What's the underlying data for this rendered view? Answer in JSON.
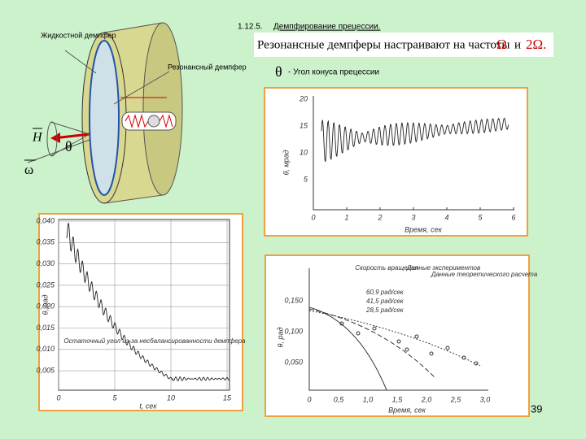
{
  "header": {
    "number": "1.12.5.",
    "title": "Демпфирование прецессии."
  },
  "callout": {
    "text": "Резонансные демпферы настраивают на частоты",
    "omega": "Ω",
    "and": "и",
    "double_omega": "2Ω."
  },
  "diagram": {
    "fluid_damper": "Жидкостной демпфер",
    "resonant_damper": "Резонансный демпфер",
    "h": "H",
    "theta": "θ",
    "omega": "ω"
  },
  "theta_note": {
    "symbol": "θ",
    "text": "- Угол конуса прецессии"
  },
  "figure1": {
    "yticks": [
      "20",
      "15",
      "10",
      "5"
    ],
    "xticks": [
      "0",
      "1",
      "2",
      "3",
      "4",
      "5",
      "6"
    ],
    "ylabel": "θ, мрад",
    "xlabel": "Время, сек"
  },
  "figure2": {
    "yticks": [
      "0,040",
      "0,035",
      "0,030",
      "0,025",
      "0,020",
      "0,015",
      "0,010",
      "0,005"
    ],
    "xticks": [
      "0",
      "5",
      "10",
      "15"
    ],
    "ylabel": "θ, рад",
    "xlabel": "t, сек",
    "annotation": "Остаточный угол из-за несбалансированности демпфера"
  },
  "figure3": {
    "legend": {
      "speed": "Скорость вращения",
      "experiment": "Данные экспериментов",
      "theory": "Данные теоретического расчета",
      "rows": [
        "60,9 рад/сек",
        "41,5 рад/сек",
        "28,5 рад/сек"
      ]
    },
    "yticks": [
      "0,150",
      "0,100",
      "0,050"
    ],
    "xticks": [
      "0",
      "0,5",
      "1,0",
      "1,5",
      "2,0",
      "2,5",
      "3,0"
    ],
    "ylabel": "θ, рад",
    "xlabel": "Время, сек"
  },
  "page_number": "39"
}
